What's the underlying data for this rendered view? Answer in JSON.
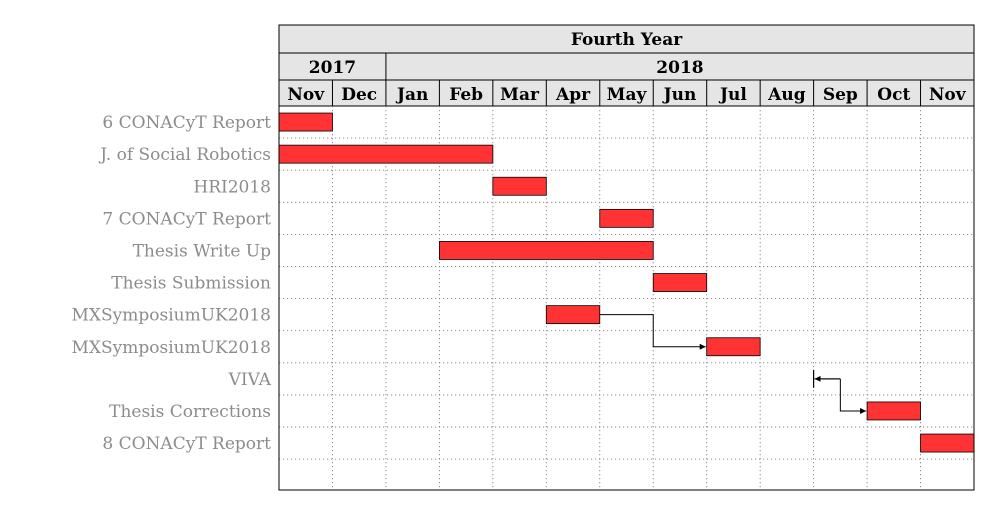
{
  "chart_data": {
    "type": "gantt",
    "title": "Fourth Year",
    "years": [
      {
        "label": "2017",
        "span": 2
      },
      {
        "label": "2018",
        "span": 11
      }
    ],
    "months": [
      "Nov",
      "Dec",
      "Jan",
      "Feb",
      "Mar",
      "Apr",
      "May",
      "Jun",
      "Jul",
      "Aug",
      "Sep",
      "Oct",
      "Nov"
    ],
    "grid": true,
    "tasks": [
      {
        "label": "6 CONACyT Report",
        "kind": "bar",
        "start": 0,
        "end": 1
      },
      {
        "label": "J. of Social Robotics",
        "kind": "bar",
        "start": 0,
        "end": 4
      },
      {
        "label": "HRI2018",
        "kind": "bar",
        "start": 4,
        "end": 5
      },
      {
        "label": "7 CONACyT Report",
        "kind": "bar",
        "start": 6,
        "end": 7
      },
      {
        "label": "Thesis Write Up",
        "kind": "bar",
        "start": 3,
        "end": 7
      },
      {
        "label": "Thesis Submission",
        "kind": "bar",
        "start": 7,
        "end": 8
      },
      {
        "label": "MXSymposiumUK2018",
        "kind": "bar",
        "start": 5,
        "end": 6
      },
      {
        "label": "MXSymposiumUK2018",
        "kind": "bar",
        "start": 8,
        "end": 9
      },
      {
        "label": "VIVA",
        "kind": "milestone",
        "start": 10,
        "end": 10
      },
      {
        "label": "Thesis Corrections",
        "kind": "bar",
        "start": 11,
        "end": 12
      },
      {
        "label": "8 CONACyT Report",
        "kind": "bar",
        "start": 12,
        "end": 13
      }
    ],
    "links": [
      {
        "from": 6,
        "to": 7
      },
      {
        "from": 8,
        "to": 9
      }
    ],
    "colors": {
      "bar": "#ff3333",
      "header_bg": "#e5e5e5",
      "label": "#8c8c8c",
      "grid": "#808080"
    }
  }
}
